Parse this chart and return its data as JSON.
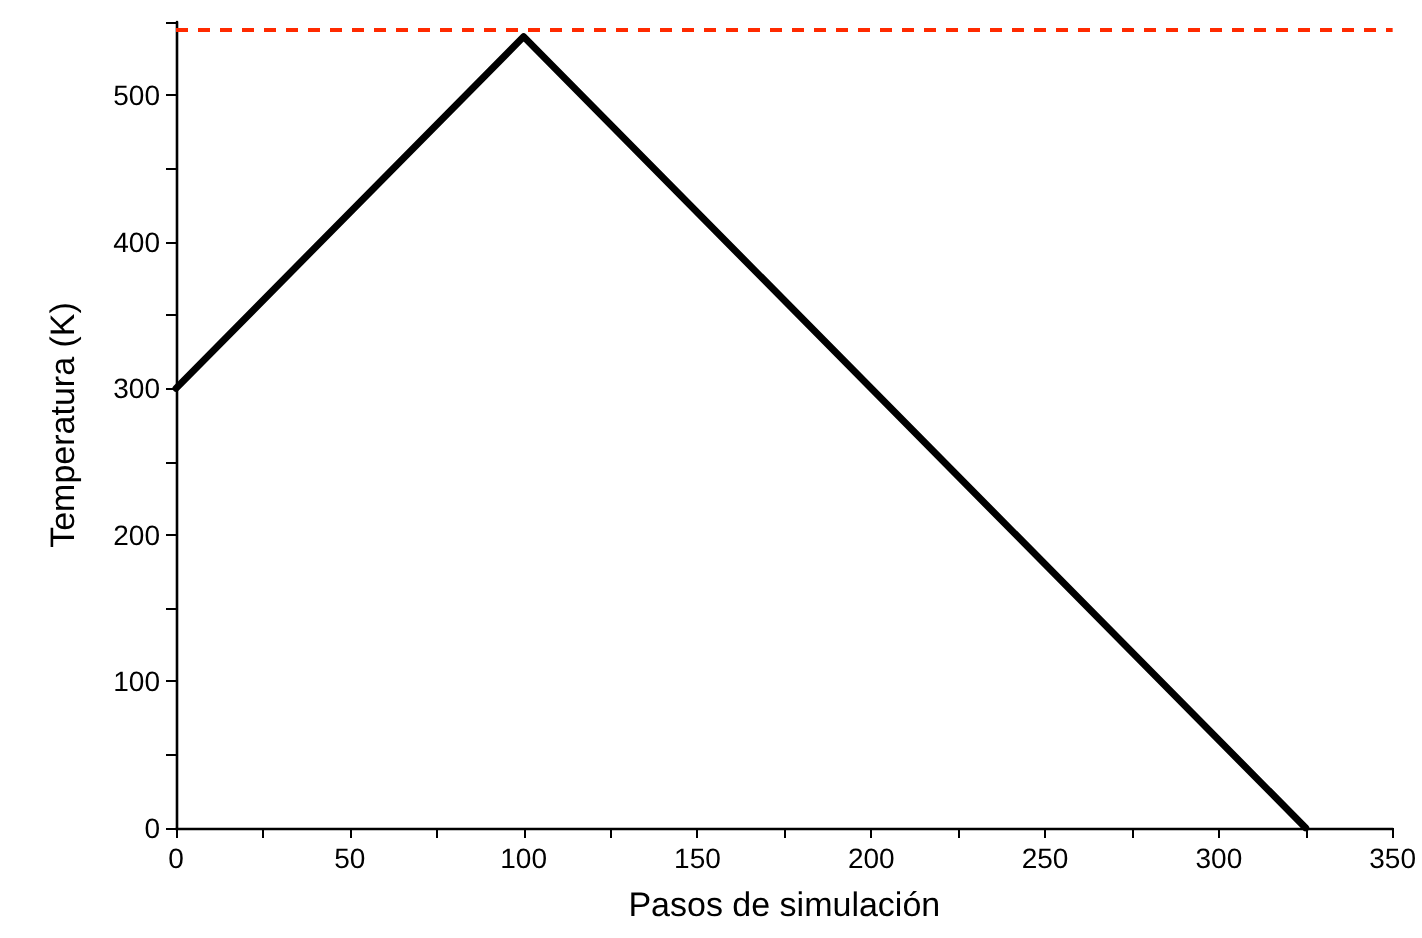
{
  "chart_data": {
    "type": "line",
    "xlabel": "Pasos de simulación",
    "ylabel": "Temperatura (K)",
    "x": [
      0,
      100,
      325
    ],
    "series": [
      {
        "color": "#000000",
        "values": [
          300,
          540,
          0
        ]
      }
    ],
    "xlim": [
      0,
      350
    ],
    "xticks": [
      0,
      {
        "value": 25,
        "label": null
      },
      50,
      {
        "value": 75,
        "label": null
      },
      100,
      {
        "value": 125,
        "label": null
      },
      150,
      {
        "value": 175,
        "label": null
      },
      200,
      {
        "value": 225,
        "label": null
      },
      250,
      {
        "value": 275,
        "label": null
      },
      300,
      {
        "value": 325,
        "label": null
      },
      350
    ],
    "ylim": [
      0,
      550
    ],
    "yticks": [
      0,
      {
        "value": 50,
        "label": null
      },
      100,
      {
        "value": 150,
        "label": null
      },
      200,
      {
        "value": 250,
        "label": null
      },
      300,
      {
        "value": 350,
        "label": null
      },
      400,
      {
        "value": 450,
        "label": null
      },
      500,
      {
        "value": 550,
        "label": null
      }
    ],
    "ref_lines": [
      {
        "axis": "y",
        "value": 545,
        "color": "#ff2a00",
        "line_style": "dashed"
      }
    ],
    "marker": "none",
    "line_style": "solid"
  }
}
